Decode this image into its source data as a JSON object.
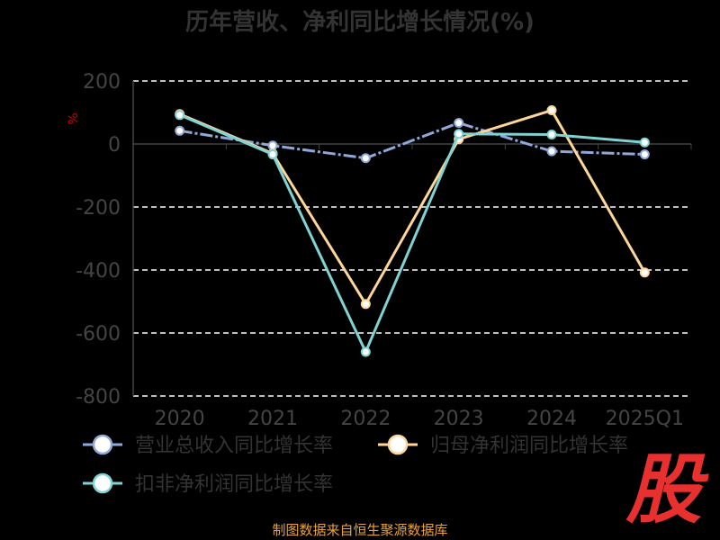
{
  "chart_data": {
    "type": "line",
    "title": "历年营收、净利同比增长情况(%)",
    "ylabel": "%",
    "categories": [
      "2020",
      "2021",
      "2022",
      "2023",
      "2024",
      "2025Q1"
    ],
    "ylim": [
      -800,
      200
    ],
    "yticks": [
      200,
      0,
      -200,
      -400,
      -600,
      -800
    ],
    "grid": true,
    "legend_position": "bottom",
    "series": [
      {
        "name": "营业总收入同比增长率",
        "color": "#8fa8d8",
        "values": [
          42,
          -5,
          -45,
          67,
          -23,
          -33
        ]
      },
      {
        "name": "归母净利润同比增长率",
        "color": "#ffd699",
        "values": [
          95,
          -30,
          -508,
          15,
          107,
          -408
        ]
      },
      {
        "name": "扣非净利润同比增长率",
        "color": "#7fd3d3",
        "values": [
          92,
          -33,
          -660,
          32,
          30,
          5
        ]
      }
    ]
  },
  "footer": {
    "source": "制图数据来自恒生聚源数据库",
    "logo_text": "股"
  }
}
